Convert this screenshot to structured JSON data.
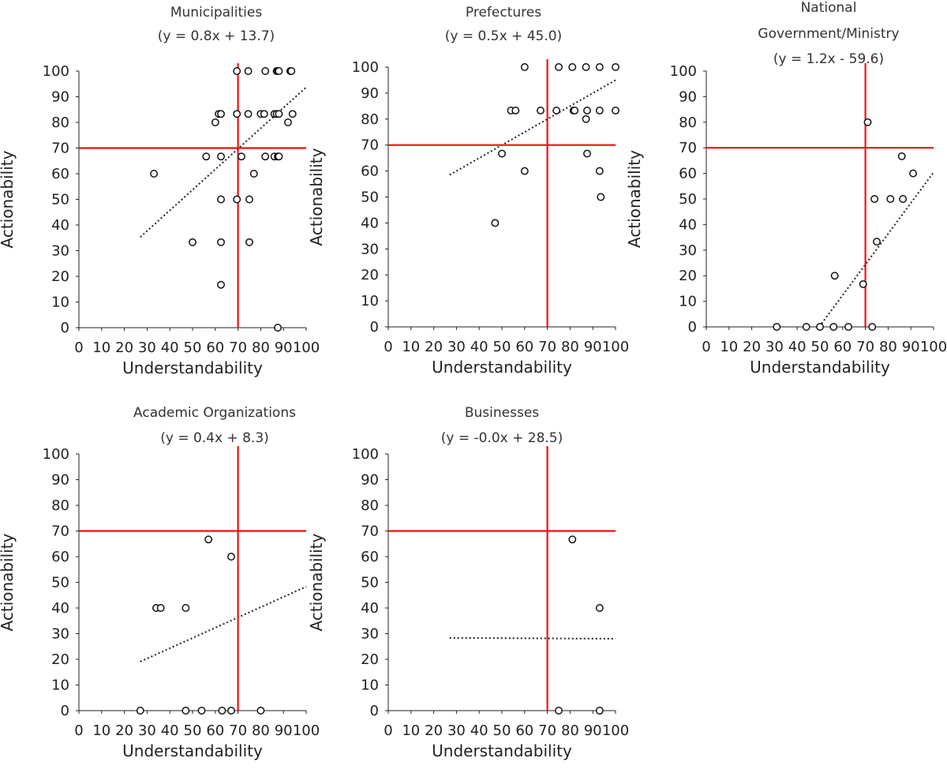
{
  "chart_data": [
    {
      "type": "scatter",
      "title": [
        "Municipalities",
        "(y = 0.8x + 13.7)"
      ],
      "xlabel": "Understandability",
      "ylabel": "Actionability",
      "xlim": [
        0,
        100
      ],
      "ylim": [
        0,
        100
      ],
      "xticks": [
        "0",
        "10",
        "20",
        "30",
        "40",
        "50",
        "60",
        "70",
        "80",
        "90",
        "100"
      ],
      "yticks": [
        "0",
        "10",
        "20",
        "30",
        "40",
        "50",
        "60",
        "70",
        "80",
        "90",
        "100"
      ],
      "reference_lines": {
        "x": 70,
        "y": 70,
        "color": "#ee1111"
      },
      "trendline": {
        "slope": 0.8,
        "intercept": 13.7,
        "x_range": [
          27,
          100
        ]
      },
      "points": [
        [
          33,
          60
        ],
        [
          50,
          33.3
        ],
        [
          56,
          66.7
        ],
        [
          60,
          80
        ],
        [
          61.5,
          83.3
        ],
        [
          62.5,
          83.3
        ],
        [
          62.5,
          66.7
        ],
        [
          62.5,
          50
        ],
        [
          62.5,
          33.3
        ],
        [
          62.5,
          16.7
        ],
        [
          69.5,
          100
        ],
        [
          69.5,
          83.3
        ],
        [
          69.5,
          50
        ],
        [
          71.5,
          66.7
        ],
        [
          74.5,
          100
        ],
        [
          74.5,
          83.3
        ],
        [
          75,
          50
        ],
        [
          75,
          33.3
        ],
        [
          77,
          60
        ],
        [
          80,
          83.3
        ],
        [
          81.5,
          83.3
        ],
        [
          82,
          100
        ],
        [
          82,
          66.7
        ],
        [
          86,
          83.3
        ],
        [
          86,
          66.7
        ],
        [
          87,
          100
        ],
        [
          87,
          83.3
        ],
        [
          87.5,
          100
        ],
        [
          87.5,
          66.7
        ],
        [
          88,
          100
        ],
        [
          88,
          83.3
        ],
        [
          88,
          66.7
        ],
        [
          87.5,
          0
        ],
        [
          92,
          80
        ],
        [
          93,
          100
        ],
        [
          93.5,
          100
        ],
        [
          94,
          83.3
        ]
      ]
    },
    {
      "type": "scatter",
      "title": [
        "Prefectures",
        "(y = 0.5x + 45.0)"
      ],
      "xlabel": "Understandability",
      "ylabel": "Actionability",
      "xlim": [
        0,
        100
      ],
      "ylim": [
        0,
        100
      ],
      "xticks": [
        "0",
        "10",
        "20",
        "30",
        "40",
        "50",
        "60",
        "70",
        "80",
        "90",
        "100"
      ],
      "yticks": [
        "0",
        "10",
        "20",
        "30",
        "40",
        "50",
        "60",
        "70",
        "80",
        "90",
        "100"
      ],
      "reference_lines": {
        "x": 70,
        "y": 70,
        "color": "#ee1111"
      },
      "trendline": {
        "slope": 0.5,
        "intercept": 45.0,
        "x_range": [
          27,
          100
        ]
      },
      "points": [
        [
          47,
          40
        ],
        [
          50,
          66.7
        ],
        [
          54,
          83.3
        ],
        [
          56,
          83.3
        ],
        [
          60,
          100
        ],
        [
          60,
          60
        ],
        [
          67,
          83.3
        ],
        [
          74,
          83.3
        ],
        [
          75,
          100
        ],
        [
          81,
          100
        ],
        [
          81.5,
          83.3
        ],
        [
          82,
          83.3
        ],
        [
          87,
          100
        ],
        [
          87,
          80
        ],
        [
          87.5,
          83.3
        ],
        [
          87.5,
          66.7
        ],
        [
          93,
          100
        ],
        [
          93,
          83.3
        ],
        [
          93,
          60
        ],
        [
          93.5,
          50
        ],
        [
          100,
          100
        ],
        [
          100,
          83.3
        ]
      ]
    },
    {
      "type": "scatter",
      "title": [
        "National",
        "Government/Ministry",
        "(y = 1.2x - 59.6)"
      ],
      "xlabel": "Understandability",
      "ylabel": "Actionability",
      "xlim": [
        0,
        100
      ],
      "ylim": [
        0,
        100
      ],
      "xticks": [
        "0",
        "10",
        "20",
        "30",
        "40",
        "50",
        "60",
        "70",
        "80",
        "90",
        "100"
      ],
      "yticks": [
        "0",
        "10",
        "20",
        "30",
        "40",
        "50",
        "60",
        "70",
        "80",
        "90",
        "100"
      ],
      "reference_lines": {
        "x": 70,
        "y": 70,
        "color": "#ee1111"
      },
      "trendline": {
        "slope": 1.2,
        "intercept": -59.6,
        "x_range": [
          49.7,
          100
        ]
      },
      "points": [
        [
          31,
          0
        ],
        [
          44,
          0
        ],
        [
          50,
          0
        ],
        [
          56,
          0
        ],
        [
          62.5,
          0
        ],
        [
          56.5,
          20
        ],
        [
          69,
          16.7
        ],
        [
          71,
          80
        ],
        [
          73,
          0
        ],
        [
          74,
          50
        ],
        [
          75,
          33.3
        ],
        [
          81,
          50
        ],
        [
          86,
          66.7
        ],
        [
          86.5,
          50
        ],
        [
          91,
          60
        ]
      ]
    },
    {
      "type": "scatter",
      "title": [
        "Academic Organizations",
        "(y = 0.4x + 8.3)"
      ],
      "xlabel": "Understandability",
      "ylabel": "Actionability",
      "xlim": [
        0,
        100
      ],
      "ylim": [
        0,
        100
      ],
      "xticks": [
        "0",
        "10",
        "20",
        "30",
        "40",
        "50",
        "60",
        "70",
        "80",
        "90",
        "100"
      ],
      "yticks": [
        "0",
        "10",
        "20",
        "30",
        "40",
        "50",
        "60",
        "70",
        "80",
        "90",
        "100"
      ],
      "reference_lines": {
        "x": 70,
        "y": 70,
        "color": "#ee1111"
      },
      "trendline": {
        "slope": 0.4,
        "intercept": 8.3,
        "x_range": [
          27,
          100
        ]
      },
      "points": [
        [
          27,
          0
        ],
        [
          34,
          40
        ],
        [
          36,
          40
        ],
        [
          47,
          40
        ],
        [
          47,
          0
        ],
        [
          54,
          0
        ],
        [
          57,
          66.7
        ],
        [
          63,
          0
        ],
        [
          67,
          60
        ],
        [
          67,
          0
        ],
        [
          80,
          0
        ]
      ]
    },
    {
      "type": "scatter",
      "title": [
        "Businesses",
        "(y = -0.0x + 28.5)"
      ],
      "xlabel": "Understandability",
      "ylabel": "Actionability",
      "xlim": [
        0,
        100
      ],
      "ylim": [
        0,
        100
      ],
      "xticks": [
        "0",
        "10",
        "20",
        "30",
        "40",
        "50",
        "60",
        "70",
        "80",
        "90",
        "100"
      ],
      "yticks": [
        "0",
        "10",
        "20",
        "30",
        "40",
        "50",
        "60",
        "70",
        "80",
        "90",
        "100"
      ],
      "reference_lines": {
        "x": 70,
        "y": 70,
        "color": "#ee1111"
      },
      "trendline": {
        "slope": -0.005,
        "intercept": 28.5,
        "x_range": [
          27,
          100
        ]
      },
      "points": [
        [
          75,
          0
        ],
        [
          81,
          66.7
        ],
        [
          93,
          40
        ],
        [
          93,
          0
        ]
      ]
    }
  ]
}
